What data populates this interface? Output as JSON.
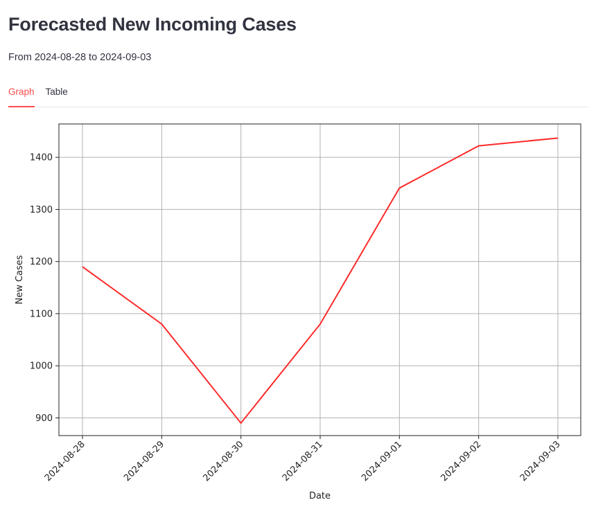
{
  "header": {
    "title": "Forecasted New Incoming Cases",
    "subtitle": "From 2024-08-28 to 2024-09-03"
  },
  "tabs": [
    {
      "label": "Graph",
      "active": true
    },
    {
      "label": "Table",
      "active": false
    }
  ],
  "colors": {
    "accent": "#ff4b4b",
    "line": "#ff2a2a",
    "grid": "#b0b0b0"
  },
  "chart_data": {
    "type": "line",
    "xlabel": "Date",
    "ylabel": "New Cases",
    "x": [
      "2024-08-28",
      "2024-08-29",
      "2024-08-30",
      "2024-08-31",
      "2024-09-01",
      "2024-09-02",
      "2024-09-03"
    ],
    "series": [
      {
        "values": [
          1190,
          1080,
          890,
          1080,
          1341,
          1422,
          1437
        ]
      }
    ],
    "yticks": [
      900,
      1000,
      1100,
      1200,
      1300,
      1400
    ],
    "ylim": [
      866,
      1464
    ],
    "grid": true,
    "legend": "none"
  }
}
